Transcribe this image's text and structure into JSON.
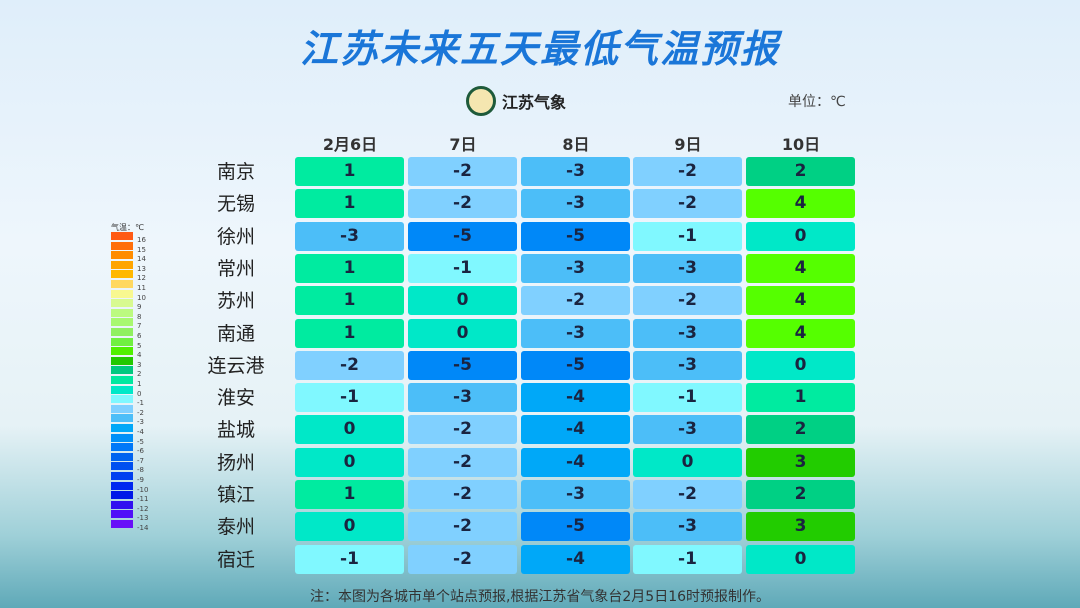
{
  "title": "江苏未来五天最低气温预报",
  "logo_text": "江苏气象",
  "unit": "单位：℃",
  "note": "注：本图为各城市单个站点预报,根据江苏省气象台2月5日16时预报制作。",
  "legend": {
    "title": "气温：℃",
    "levels": [
      16,
      15,
      14,
      13,
      12,
      11,
      10,
      9,
      8,
      7,
      6,
      5,
      4,
      3,
      2,
      1,
      0,
      -1,
      -2,
      -3,
      -4,
      -5,
      -6,
      -7,
      -8,
      -9,
      -10,
      -11,
      -12,
      -13,
      -14
    ],
    "colors": [
      "#ff5a14",
      "#ff6e0a",
      "#ff8c00",
      "#ffa500",
      "#ffb800",
      "#ffd860",
      "#f8f890",
      "#d8fa90",
      "#bcfa80",
      "#a8f870",
      "#90f060",
      "#70f040",
      "#50f000",
      "#22c800",
      "#00c880",
      "#00e8a0",
      "#00e8c8",
      "#80f8ff",
      "#80d0ff",
      "#4cbef8",
      "#00a8f8",
      "#0090f8",
      "#0078f8",
      "#0064f0",
      "#0050f0",
      "#0040f0",
      "#0028f0",
      "#0018e8",
      "#3010f0",
      "#5010f8",
      "#6810f8"
    ]
  },
  "chart_data": {
    "type": "table",
    "title": "江苏未来五天最低气温预报",
    "columns": [
      "2月6日",
      "7日",
      "8日",
      "9日",
      "10日"
    ],
    "rows": [
      "南京",
      "无锡",
      "徐州",
      "常州",
      "苏州",
      "南通",
      "连云港",
      "淮安",
      "盐城",
      "扬州",
      "镇江",
      "泰州",
      "宿迁"
    ],
    "values": [
      [
        1,
        -2,
        -3,
        -2,
        2
      ],
      [
        1,
        -2,
        -3,
        -2,
        4
      ],
      [
        -3,
        -5,
        -5,
        -1,
        0
      ],
      [
        1,
        -1,
        -3,
        -3,
        4
      ],
      [
        1,
        0,
        -2,
        -2,
        4
      ],
      [
        1,
        0,
        -3,
        -3,
        4
      ],
      [
        -2,
        -5,
        -5,
        -3,
        0
      ],
      [
        -1,
        -3,
        -4,
        -1,
        1
      ],
      [
        0,
        -2,
        -4,
        -3,
        2
      ],
      [
        0,
        -2,
        -4,
        0,
        3
      ],
      [
        1,
        -2,
        -3,
        -2,
        2
      ],
      [
        0,
        -2,
        -5,
        -3,
        3
      ],
      [
        -1,
        -2,
        -4,
        -1,
        0
      ]
    ],
    "color_map": {
      "4": "#55ff00",
      "3": "#22cc00",
      "2": "#00d084",
      "1": "#00eba0",
      "0": "#00e8c8",
      "-1": "#80f8ff",
      "-2": "#80d0ff",
      "-3": "#4cbef8",
      "-4": "#00a8f8",
      "-5": "#0088f8"
    }
  }
}
